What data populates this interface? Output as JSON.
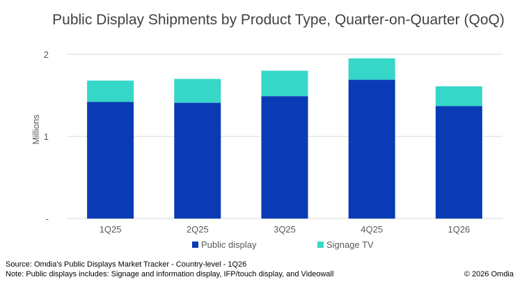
{
  "chart_data": {
    "type": "bar",
    "stacked": true,
    "title": "Public Display Shipments by Product Type, Quarter-on-Quarter (QoQ)",
    "ylabel": "Millions",
    "xlabel": "",
    "ylim": [
      0,
      2
    ],
    "yticks": [
      {
        "value": 0,
        "label": "-"
      },
      {
        "value": 1,
        "label": "1"
      },
      {
        "value": 2,
        "label": "2"
      }
    ],
    "grid": true,
    "legend_position": "bottom",
    "categories": [
      "1Q25",
      "2Q25",
      "3Q25",
      "4Q25",
      "1Q26"
    ],
    "series": [
      {
        "name": "Public display",
        "color": "#0a3bb5",
        "values": [
          1.42,
          1.41,
          1.49,
          1.69,
          1.37
        ]
      },
      {
        "name": "Signage TV",
        "color": "#36d6c8",
        "values": [
          0.26,
          0.29,
          0.31,
          0.26,
          0.24
        ]
      }
    ]
  },
  "footer": {
    "source": "Source: Omdia's Public Displays Market Tracker - Country-level - 1Q26",
    "note": "Note: Public displays includes: Signage and information display, IFP/touch display, and Videowall",
    "copyright": "© 2026 Omdia"
  }
}
